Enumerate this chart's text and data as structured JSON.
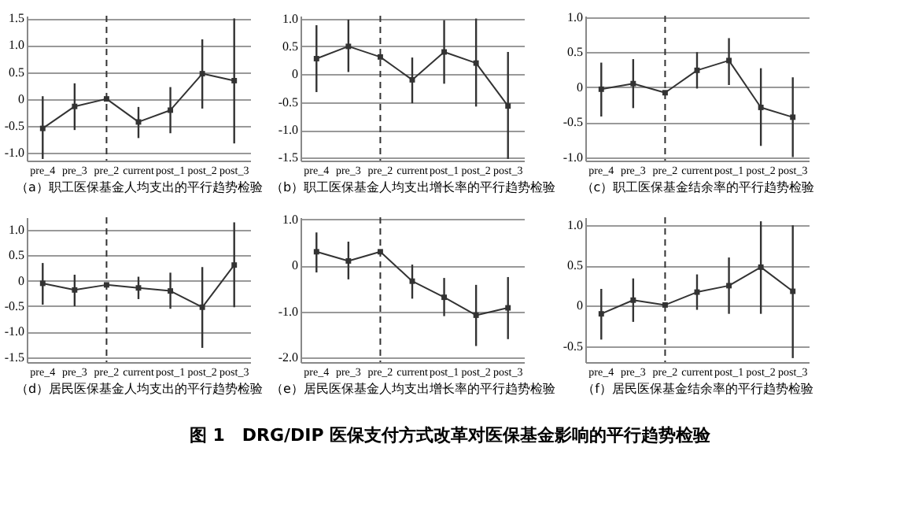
{
  "chart_data": [
    {
      "type": "line",
      "xlabel": "（a）职工医保基金人均支出的平行趋势检验",
      "categories": [
        "pre_4",
        "pre_3",
        "pre_2",
        "current",
        "post_1",
        "post_2",
        "post_3"
      ],
      "ylim": [
        -1.15,
        1.55
      ],
      "yticks": [
        {
          "value": -1,
          "label": "-1.0"
        },
        {
          "value": -0.5,
          "label": "-0.5"
        },
        {
          "value": 0,
          "label": "0"
        },
        {
          "value": 0.5,
          "label": "0.5"
        },
        {
          "value": 1,
          "label": "1.0"
        },
        {
          "value": 1.5,
          "label": "1.5"
        }
      ],
      "grid": "y",
      "marker": "square",
      "line_style": "solid",
      "ref_lines": [
        {
          "axis": "x",
          "value": "pre_2",
          "line_style": "dashed"
        }
      ],
      "series": [
        {
          "color": "#333333",
          "values": [
            -0.55,
            -0.14,
            0,
            -0.43,
            -0.21,
            0.47,
            0.34
          ],
          "errors": [
            [
              -1.12,
              0.05
            ],
            [
              -0.58,
              0.29
            ],
            null,
            [
              -0.73,
              -0.15
            ],
            [
              -0.64,
              0.22
            ],
            [
              -0.18,
              1.11
            ],
            [
              -0.83,
              1.5
            ]
          ]
        }
      ]
    },
    {
      "type": "line",
      "xlabel": "（b）职工医保基金人均支出增长率的平行趋势检验",
      "categories": [
        "pre_4",
        "pre_3",
        "pre_2",
        "current",
        "post_1",
        "post_2",
        "post_3"
      ],
      "ylim": [
        -1.55,
        1.05
      ],
      "yticks": [
        {
          "value": -1.5,
          "label": "-1.5"
        },
        {
          "value": -1,
          "label": "-1.0"
        },
        {
          "value": -0.5,
          "label": "-0.5"
        },
        {
          "value": 0,
          "label": "0"
        },
        {
          "value": 0.5,
          "label": "0.5"
        },
        {
          "value": 1,
          "label": "1.0"
        }
      ],
      "grid": "y",
      "marker": "square",
      "line_style": "solid",
      "ref_lines": [
        {
          "axis": "x",
          "value": "pre_2",
          "line_style": "dashed"
        }
      ],
      "series": [
        {
          "color": "#333333",
          "values": [
            0.28,
            0.5,
            0.31,
            -0.1,
            0.4,
            0.2,
            -0.57
          ],
          "errors": [
            [
              -0.32,
              0.88
            ],
            [
              0.04,
              0.98
            ],
            null,
            [
              -0.52,
              0.3
            ],
            [
              -0.17,
              0.97
            ],
            [
              -0.58,
              1.0
            ],
            [
              -1.52,
              0.4
            ]
          ]
        }
      ]
    },
    {
      "type": "line",
      "xlabel": "（c）职工医保基金结余率的平行趋势检验",
      "categories": [
        "pre_4",
        "pre_3",
        "pre_2",
        "current",
        "post_1",
        "post_2",
        "post_3"
      ],
      "ylim": [
        -1.05,
        1.02
      ],
      "yticks": [
        {
          "value": -1,
          "label": "-1.0"
        },
        {
          "value": -0.5,
          "label": "-0.5"
        },
        {
          "value": 0,
          "label": "0"
        },
        {
          "value": 0.5,
          "label": "0.5"
        },
        {
          "value": 1,
          "label": "1.0"
        }
      ],
      "grid": "y",
      "marker": "square",
      "line_style": "solid",
      "ref_lines": [
        {
          "axis": "x",
          "value": "pre_2",
          "line_style": "dashed"
        }
      ],
      "series": [
        {
          "color": "#333333",
          "values": [
            -0.03,
            0.05,
            -0.08,
            0.24,
            0.38,
            -0.29,
            -0.43
          ],
          "errors": [
            [
              -0.42,
              0.35
            ],
            [
              -0.3,
              0.4
            ],
            null,
            [
              -0.02,
              0.5
            ],
            [
              0.03,
              0.7
            ],
            [
              -0.84,
              0.27
            ],
            [
              -1.0,
              0.14
            ]
          ]
        }
      ]
    },
    {
      "type": "line",
      "xlabel": "（d）居民医保基金人均支出的平行趋势检验",
      "categories": [
        "pre_4",
        "pre_3",
        "pre_2",
        "current",
        "post_1",
        "post_2",
        "post_3"
      ],
      "ylim": [
        -1.6,
        1.25
      ],
      "yticks": [
        {
          "value": -1.5,
          "label": "-1.5"
        },
        {
          "value": -1,
          "label": "-1.0"
        },
        {
          "value": -0.5,
          "label": "-0.5"
        },
        {
          "value": 0,
          "label": "0"
        },
        {
          "value": 0.5,
          "label": "0.5"
        },
        {
          "value": 1,
          "label": "1.0"
        }
      ],
      "grid": "y",
      "marker": "square",
      "line_style": "solid",
      "ref_lines": [
        {
          "axis": "x",
          "value": "pre_2",
          "line_style": "dashed"
        }
      ],
      "series": [
        {
          "color": "#333333",
          "values": [
            -0.05,
            -0.18,
            -0.08,
            -0.14,
            -0.2,
            -0.52,
            0.31
          ],
          "errors": [
            [
              -0.47,
              0.35
            ],
            [
              -0.5,
              0.12
            ],
            null,
            [
              -0.36,
              0.08
            ],
            [
              -0.55,
              0.16
            ],
            [
              -1.32,
              0.27
            ],
            [
              -0.52,
              1.15
            ]
          ]
        }
      ]
    },
    {
      "type": "line",
      "xlabel": "（e）居民医保基金人均支出增长率的平行趋势检验",
      "categories": [
        "pre_4",
        "pre_3",
        "pre_2",
        "current",
        "post_1",
        "post_2",
        "post_3"
      ],
      "ylim": [
        -2.1,
        1.05
      ],
      "yticks": [
        {
          "value": -2,
          "label": "-2.0"
        },
        {
          "value": -1,
          "label": "-1.0"
        },
        {
          "value": 0,
          "label": "0"
        },
        {
          "value": 1,
          "label": "1.0"
        }
      ],
      "grid": "y",
      "marker": "square",
      "line_style": "solid",
      "ref_lines": [
        {
          "axis": "x",
          "value": "pre_2",
          "line_style": "dashed"
        }
      ],
      "series": [
        {
          "color": "#333333",
          "values": [
            0.3,
            0.1,
            0.3,
            -0.34,
            -0.69,
            -1.08,
            -0.92
          ],
          "errors": [
            [
              -0.15,
              0.72
            ],
            [
              -0.3,
              0.52
            ],
            null,
            [
              -0.72,
              0.02
            ],
            [
              -1.1,
              -0.27
            ],
            [
              -1.75,
              -0.42
            ],
            [
              -1.6,
              -0.25
            ]
          ]
        }
      ]
    },
    {
      "type": "line",
      "xlabel": "（f）居民医保基金结余率的平行趋势检验",
      "categories": [
        "pre_4",
        "pre_3",
        "pre_2",
        "current",
        "post_1",
        "post_2",
        "post_3"
      ],
      "ylim": [
        -0.7,
        1.1
      ],
      "yticks": [
        {
          "value": -0.5,
          "label": "-0.5"
        },
        {
          "value": 0,
          "label": "0"
        },
        {
          "value": 0.5,
          "label": "0.5"
        },
        {
          "value": 1,
          "label": "1.0"
        }
      ],
      "grid": "y",
      "marker": "square",
      "line_style": "solid",
      "ref_lines": [
        {
          "axis": "x",
          "value": "pre_2",
          "line_style": "dashed"
        }
      ],
      "annotations": [
        "图 1　DRG/DIP 医保支付方式改革对医保基金影响的平行趋势检验"
      ],
      "series": [
        {
          "color": "#333333",
          "values": [
            -0.1,
            0.07,
            0.01,
            0.17,
            0.25,
            0.48,
            0.18
          ],
          "errors": [
            [
              -0.42,
              0.21
            ],
            [
              -0.2,
              0.34
            ],
            null,
            [
              -0.05,
              0.39
            ],
            [
              -0.1,
              0.6
            ],
            [
              -0.1,
              1.05
            ],
            [
              -0.65,
              1.0
            ]
          ]
        }
      ]
    }
  ]
}
